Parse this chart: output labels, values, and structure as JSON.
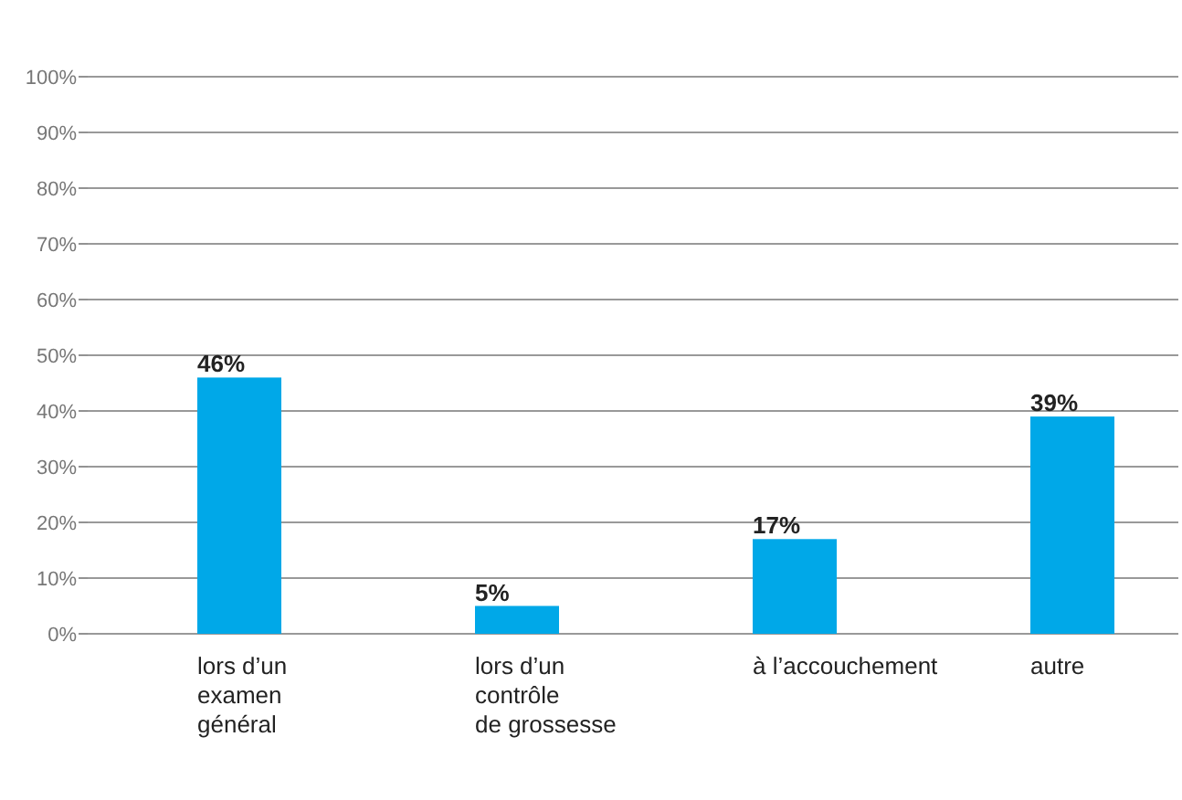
{
  "chart_data": {
    "type": "bar",
    "categories": [
      "lors d’un\nexamen\ngénéral",
      "lors d’un\ncontrôle\nde grossesse",
      "à l’accouchement",
      "autre"
    ],
    "values": [
      46,
      5,
      17,
      39
    ],
    "value_labels": [
      "46%",
      "5%",
      "17%",
      "39%"
    ],
    "color": "#00a8e8",
    "ylim": [
      0,
      100
    ],
    "yticks": [
      {
        "value": 0,
        "label": "0%"
      },
      {
        "value": 10,
        "label": "10%"
      },
      {
        "value": 20,
        "label": "20%"
      },
      {
        "value": 30,
        "label": "30%"
      },
      {
        "value": 40,
        "label": "40%"
      },
      {
        "value": 50,
        "label": "50%"
      },
      {
        "value": 60,
        "label": "60%"
      },
      {
        "value": 70,
        "label": "70%"
      },
      {
        "value": 80,
        "label": "80%"
      },
      {
        "value": 90,
        "label": "90%"
      },
      {
        "value": 100,
        "label": "100%"
      }
    ],
    "grid": true
  }
}
